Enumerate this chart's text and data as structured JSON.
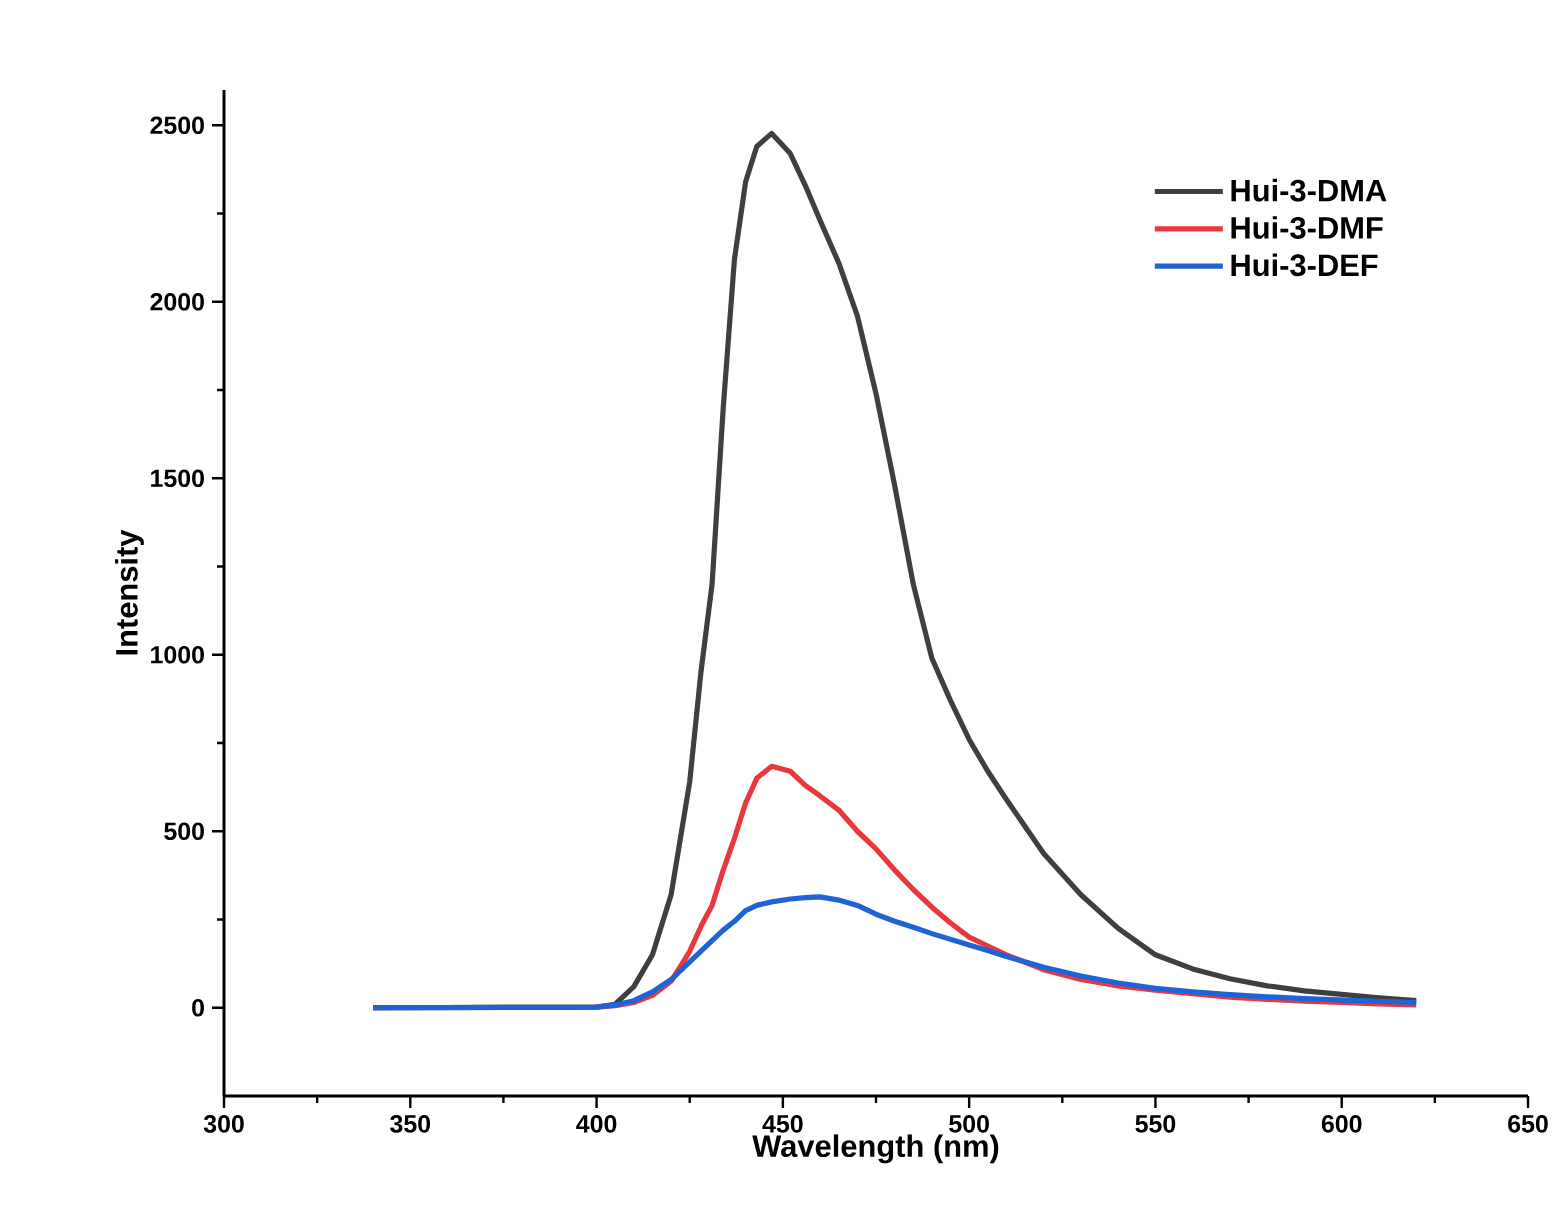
{
  "chart_data": {
    "type": "line",
    "xlabel": "Wavelength (nm)",
    "ylabel": "Intensity",
    "xlim": [
      300,
      650
    ],
    "ylim": [
      -250,
      2600
    ],
    "xticks": [
      300,
      350,
      400,
      450,
      500,
      550,
      600,
      650
    ],
    "yticks": [
      0,
      500,
      1000,
      1500,
      2000,
      2500
    ],
    "legend": "top right",
    "line_style": "solid",
    "marker": "none",
    "x": [
      340,
      400,
      405,
      410,
      415,
      420,
      425,
      428,
      431,
      434,
      437,
      440,
      443,
      447,
      452,
      456,
      460,
      465,
      470,
      475,
      480,
      485,
      490,
      495,
      500,
      505,
      510,
      520,
      530,
      540,
      550,
      560,
      570,
      580,
      590,
      600,
      610,
      620
    ],
    "series": [
      {
        "name": "Hui-3-DMA",
        "color": "#3f3f3f",
        "values": [
          0,
          2,
          10,
          60,
          150,
          320,
          640,
          950,
          1200,
          1700,
          2120,
          2340,
          2440,
          2477,
          2420,
          2330,
          2230,
          2110,
          1960,
          1740,
          1480,
          1200,
          990,
          870,
          760,
          670,
          590,
          437,
          320,
          225,
          150,
          110,
          82,
          62,
          48,
          38,
          28,
          20
        ]
      },
      {
        "name": "Hui-3-DMF",
        "color": "#e8383d",
        "values": [
          0,
          2,
          6,
          15,
          35,
          75,
          160,
          230,
          290,
          390,
          480,
          580,
          650,
          684,
          670,
          630,
          600,
          560,
          500,
          450,
          390,
          335,
          285,
          240,
          200,
          175,
          150,
          108,
          80,
          62,
          50,
          40,
          30,
          24,
          19,
          15,
          11,
          8
        ]
      },
      {
        "name": "Hui-3-DEF",
        "color": "#1f63d6",
        "values": [
          0,
          2,
          8,
          20,
          45,
          80,
          130,
          160,
          190,
          220,
          245,
          275,
          290,
          300,
          308,
          312,
          314,
          305,
          290,
          265,
          245,
          228,
          210,
          194,
          178,
          162,
          145,
          115,
          90,
          70,
          55,
          45,
          37,
          31,
          26,
          22,
          18,
          15
        ]
      }
    ]
  }
}
